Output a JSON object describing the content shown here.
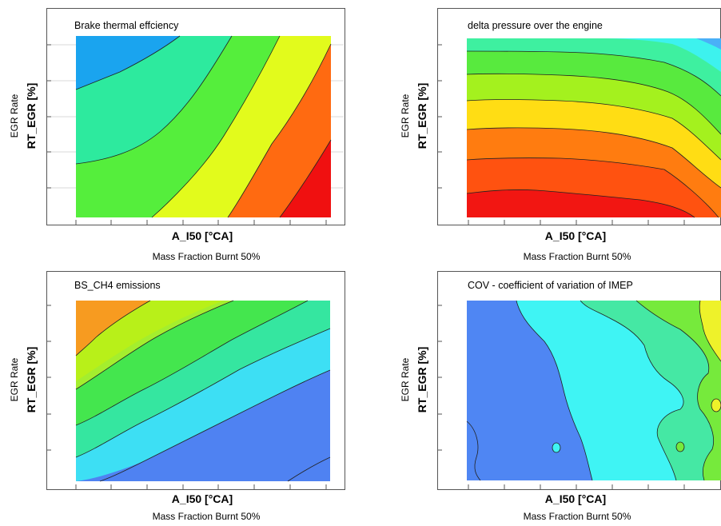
{
  "chart_data": [
    {
      "type": "heatmap",
      "title": "Brake thermal effciency",
      "xlabel": "A_I50 [°CA]",
      "xsublabel": "Mass Fraction Burnt 50%",
      "ylabel": "RT_EGR [%]",
      "ysublabel": "EGR Rate",
      "grid": true,
      "levels": [
        "#1aa4ef",
        "#2dea9e",
        "#55ee3c",
        "#e2fb1c",
        "#ff6a11",
        "#f01010"
      ]
    },
    {
      "type": "heatmap",
      "title": "delta pressure over the engine",
      "xlabel": "A_I50 [°CA]",
      "xsublabel": "Mass Fraction Burnt 50%",
      "ylabel": "RT_EGR [%]",
      "ysublabel": "EGR Rate",
      "grid": true,
      "levels": [
        "#4ab0f7",
        "#3df2ee",
        "#3ef0a0",
        "#58ea3e",
        "#a4f11e",
        "#ffdd14",
        "#ff7c10",
        "#ff5210",
        "#f21612"
      ]
    },
    {
      "type": "heatmap",
      "title": "BS_CH4 emissions",
      "xlabel": "A_I50 [°CA]",
      "xsublabel": "Mass Fraction Burnt 50%",
      "ylabel": "RT_EGR [%]",
      "ysublabel": "EGR Rate",
      "grid": true,
      "levels": [
        "#f79b20",
        "#b8f019",
        "#a4ee2e",
        "#44e64e",
        "#35e6a0",
        "#3ddff4",
        "#4f82f2"
      ]
    },
    {
      "type": "heatmap",
      "title": "COV - coefficient of variation of IMEP",
      "xlabel": "A_I50 [°CA]",
      "xsublabel": "Mass Fraction Burnt 50%",
      "ylabel": "RT_EGR [%]",
      "ysublabel": "EGR Rate",
      "grid": true,
      "levels": [
        "#4f86f3",
        "#3ff4f4",
        "#45e8a4",
        "#76ea3c",
        "#eef22a"
      ]
    }
  ]
}
